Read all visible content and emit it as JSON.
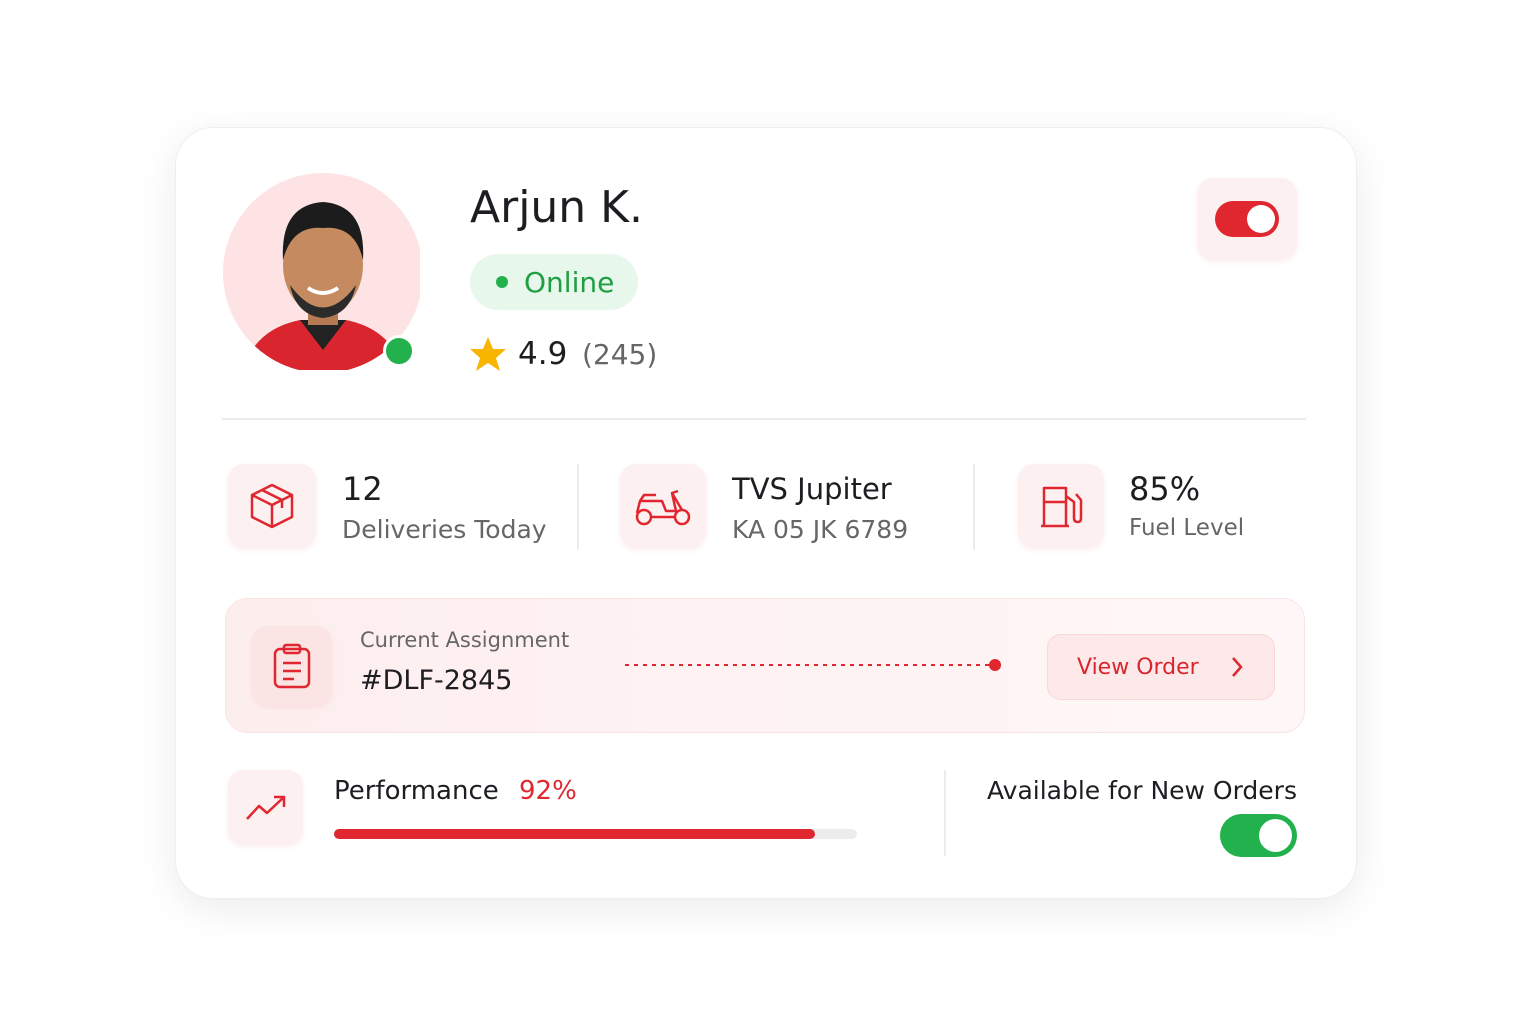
{
  "profile": {
    "name": "Arjun K.",
    "status": "Online",
    "rating": "4.9",
    "rating_count": "(245)"
  },
  "stats": [
    {
      "value": "12",
      "label": "Deliveries Today"
    },
    {
      "value": "TVS Jupiter",
      "label": "KA 05 JK 6789"
    },
    {
      "value": "85%",
      "label": "Fuel Level"
    }
  ],
  "assignment": {
    "label": "Current Assignment",
    "id": "#DLF-2845",
    "button": "View Order"
  },
  "performance": {
    "label": "Performance",
    "value": 92,
    "value_label": "92%"
  },
  "availability": {
    "label": "Available for New Orders"
  }
}
